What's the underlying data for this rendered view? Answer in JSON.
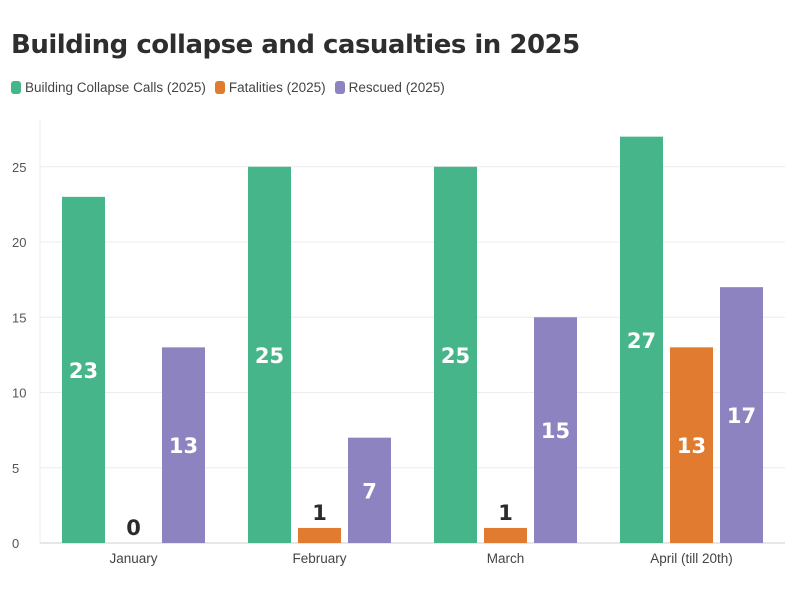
{
  "chart_data": {
    "type": "bar",
    "title": "Building collapse and casualties in 2025",
    "xlabel": "",
    "ylabel": "",
    "categories": [
      "January",
      "February",
      "March",
      "April (till 20th)"
    ],
    "series": [
      {
        "name": "Building Collapse Calls (2025)",
        "color": "#47b58a",
        "values": [
          23,
          25,
          25,
          27
        ]
      },
      {
        "name": "Fatalities (2025)",
        "color": "#e07b2f",
        "values": [
          0,
          1,
          1,
          13
        ]
      },
      {
        "name": "Rescued (2025)",
        "color": "#8d83c0",
        "values": [
          13,
          7,
          15,
          17
        ]
      }
    ],
    "ylim": [
      0,
      28
    ],
    "yticks": [
      0,
      5,
      10,
      15,
      20,
      25
    ],
    "grid": true,
    "legend_position": "top-left"
  }
}
